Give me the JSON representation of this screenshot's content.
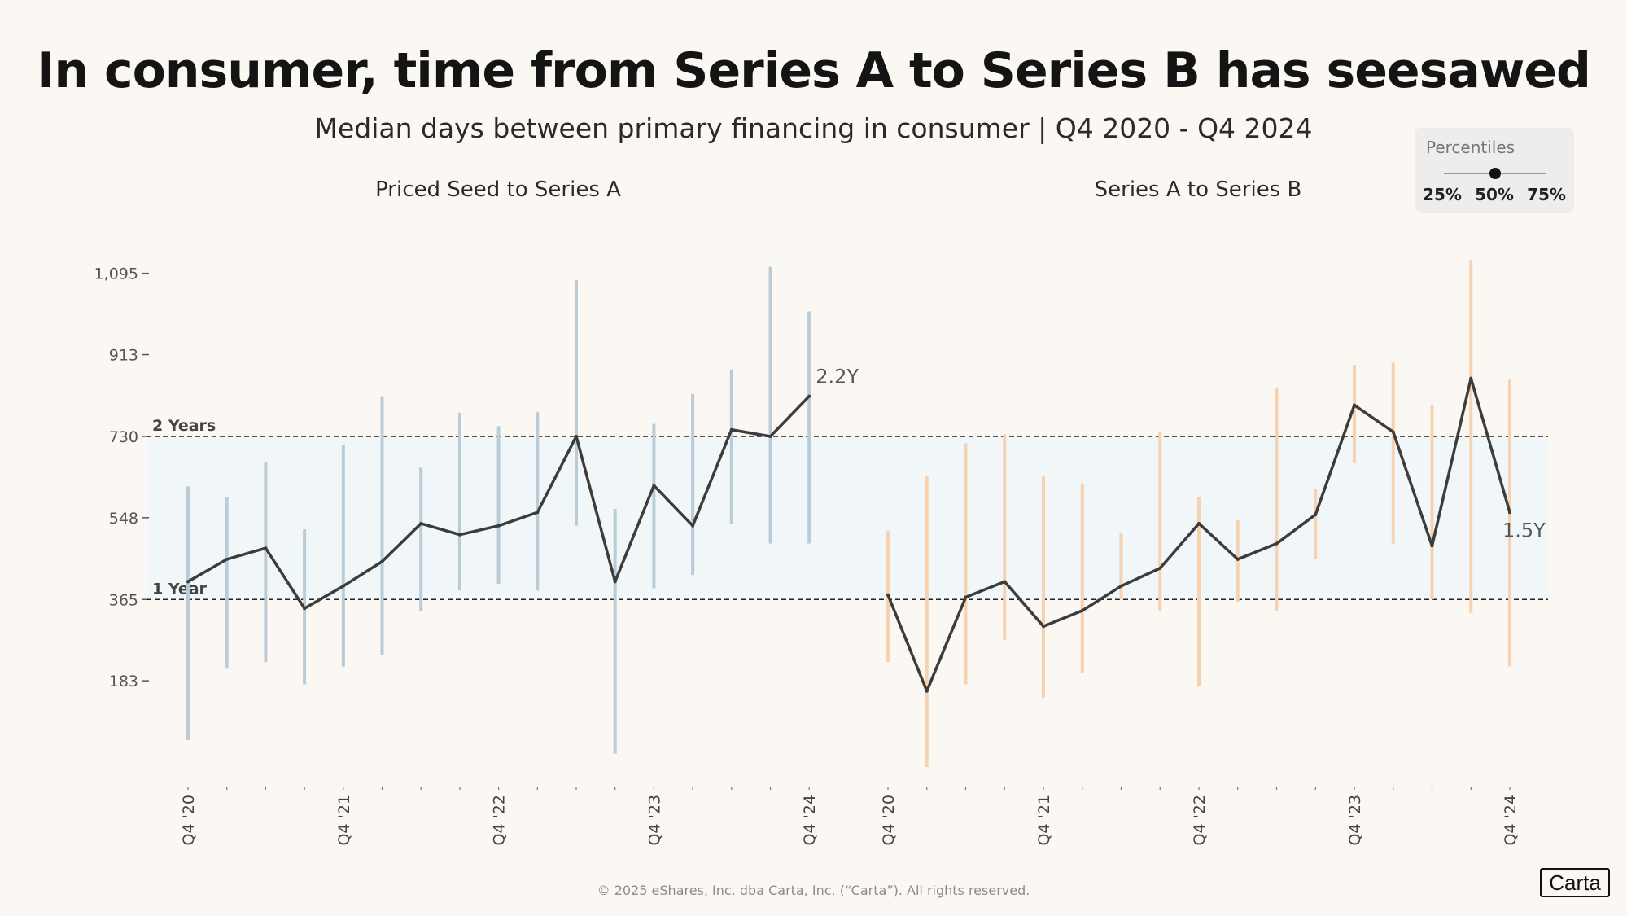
{
  "header": {
    "title": "In consumer, time from Series A to Series B has seesawed",
    "subtitle": "Median days between primary financing in consumer | Q4 2020 - Q4 2024"
  },
  "legend": {
    "title": "Percentiles",
    "options": [
      "25%",
      "50%",
      "75%"
    ],
    "selected": "50%"
  },
  "footer": {
    "copyright": "© 2025 eShares, Inc. dba Carta, Inc. (“Carta”). All rights reserved.",
    "brand": "Carta"
  },
  "colors": {
    "median_line": "#3c3c3c",
    "seed_to_a_range": "#b9ccd8",
    "a_to_b_range": "#f6d2b0",
    "band_fill": "#f1f7f8",
    "reference_line": "#222222"
  },
  "chart_data": [
    {
      "type": "line",
      "title": "Priced Seed to Series A",
      "x": [
        "Q4 '20",
        "Q1 '21",
        "Q2 '21",
        "Q3 '21",
        "Q4 '21",
        "Q1 '22",
        "Q2 '22",
        "Q3 '22",
        "Q4 '22",
        "Q1 '23",
        "Q2 '23",
        "Q3 '23",
        "Q4 '23",
        "Q1 '24",
        "Q2 '24",
        "Q3 '24",
        "Q4 '24"
      ],
      "x_tick_labels": [
        "Q4 '20",
        "Q4 '21",
        "Q4 '22",
        "Q4 '23",
        "Q4 '24"
      ],
      "series": [
        {
          "values": [
            405,
            455,
            480,
            345,
            395,
            450,
            535,
            510,
            530,
            560,
            730,
            405,
            620,
            530,
            745,
            730,
            820
          ]
        }
      ],
      "ranges": [
        [
          50,
          618
        ],
        [
          210,
          593
        ],
        [
          225,
          672
        ],
        [
          175,
          522
        ],
        [
          215,
          712
        ],
        [
          240,
          820
        ],
        [
          340,
          660
        ],
        [
          385,
          783
        ],
        [
          400,
          753
        ],
        [
          385,
          785
        ],
        [
          530,
          1080
        ],
        [
          20,
          568
        ],
        [
          390,
          758
        ],
        [
          420,
          825
        ],
        [
          535,
          880
        ],
        [
          490,
          1110
        ],
        [
          490,
          1010
        ]
      ],
      "end_label": "2.2Y",
      "ylim": [
        -50,
        1160
      ],
      "y_ticks": [
        183,
        365,
        548,
        730,
        913,
        1095
      ],
      "y_tick_labels": [
        "183",
        "365",
        "548",
        "730",
        "913",
        "1,095"
      ],
      "reference_lines": [
        {
          "value": 365,
          "label": "1 Year"
        },
        {
          "value": 730,
          "label": "2 Years"
        }
      ]
    },
    {
      "type": "line",
      "title": "Series A to Series B",
      "x": [
        "Q4 '20",
        "Q1 '21",
        "Q2 '21",
        "Q3 '21",
        "Q4 '21",
        "Q1 '22",
        "Q2 '22",
        "Q3 '22",
        "Q4 '22",
        "Q1 '23",
        "Q2 '23",
        "Q3 '23",
        "Q4 '23",
        "Q1 '24",
        "Q2 '24",
        "Q3 '24",
        "Q4 '24"
      ],
      "x_tick_labels": [
        "Q4 '20",
        "Q4 '21",
        "Q4 '22",
        "Q4 '23",
        "Q4 '24"
      ],
      "series": [
        {
          "values": [
            375,
            160,
            370,
            405,
            305,
            340,
            395,
            435,
            535,
            455,
            490,
            555,
            800,
            740,
            485,
            860,
            560
          ]
        }
      ],
      "ranges": [
        [
          225,
          518
        ],
        [
          -10,
          640
        ],
        [
          175,
          715
        ],
        [
          275,
          735
        ],
        [
          145,
          640
        ],
        [
          200,
          625
        ],
        [
          365,
          515
        ],
        [
          340,
          740
        ],
        [
          170,
          595
        ],
        [
          360,
          542
        ],
        [
          340,
          840
        ],
        [
          455,
          612
        ],
        [
          670,
          890
        ],
        [
          490,
          895
        ],
        [
          365,
          800
        ],
        [
          335,
          1125
        ],
        [
          215,
          857
        ]
      ],
      "end_label": "1.5Y",
      "ylim": [
        -50,
        1160
      ],
      "y_ticks": [
        183,
        365,
        548,
        730,
        913,
        1095
      ],
      "reference_lines": [
        {
          "value": 365,
          "label": "1 Year"
        },
        {
          "value": 730,
          "label": "2 Years"
        }
      ]
    }
  ]
}
